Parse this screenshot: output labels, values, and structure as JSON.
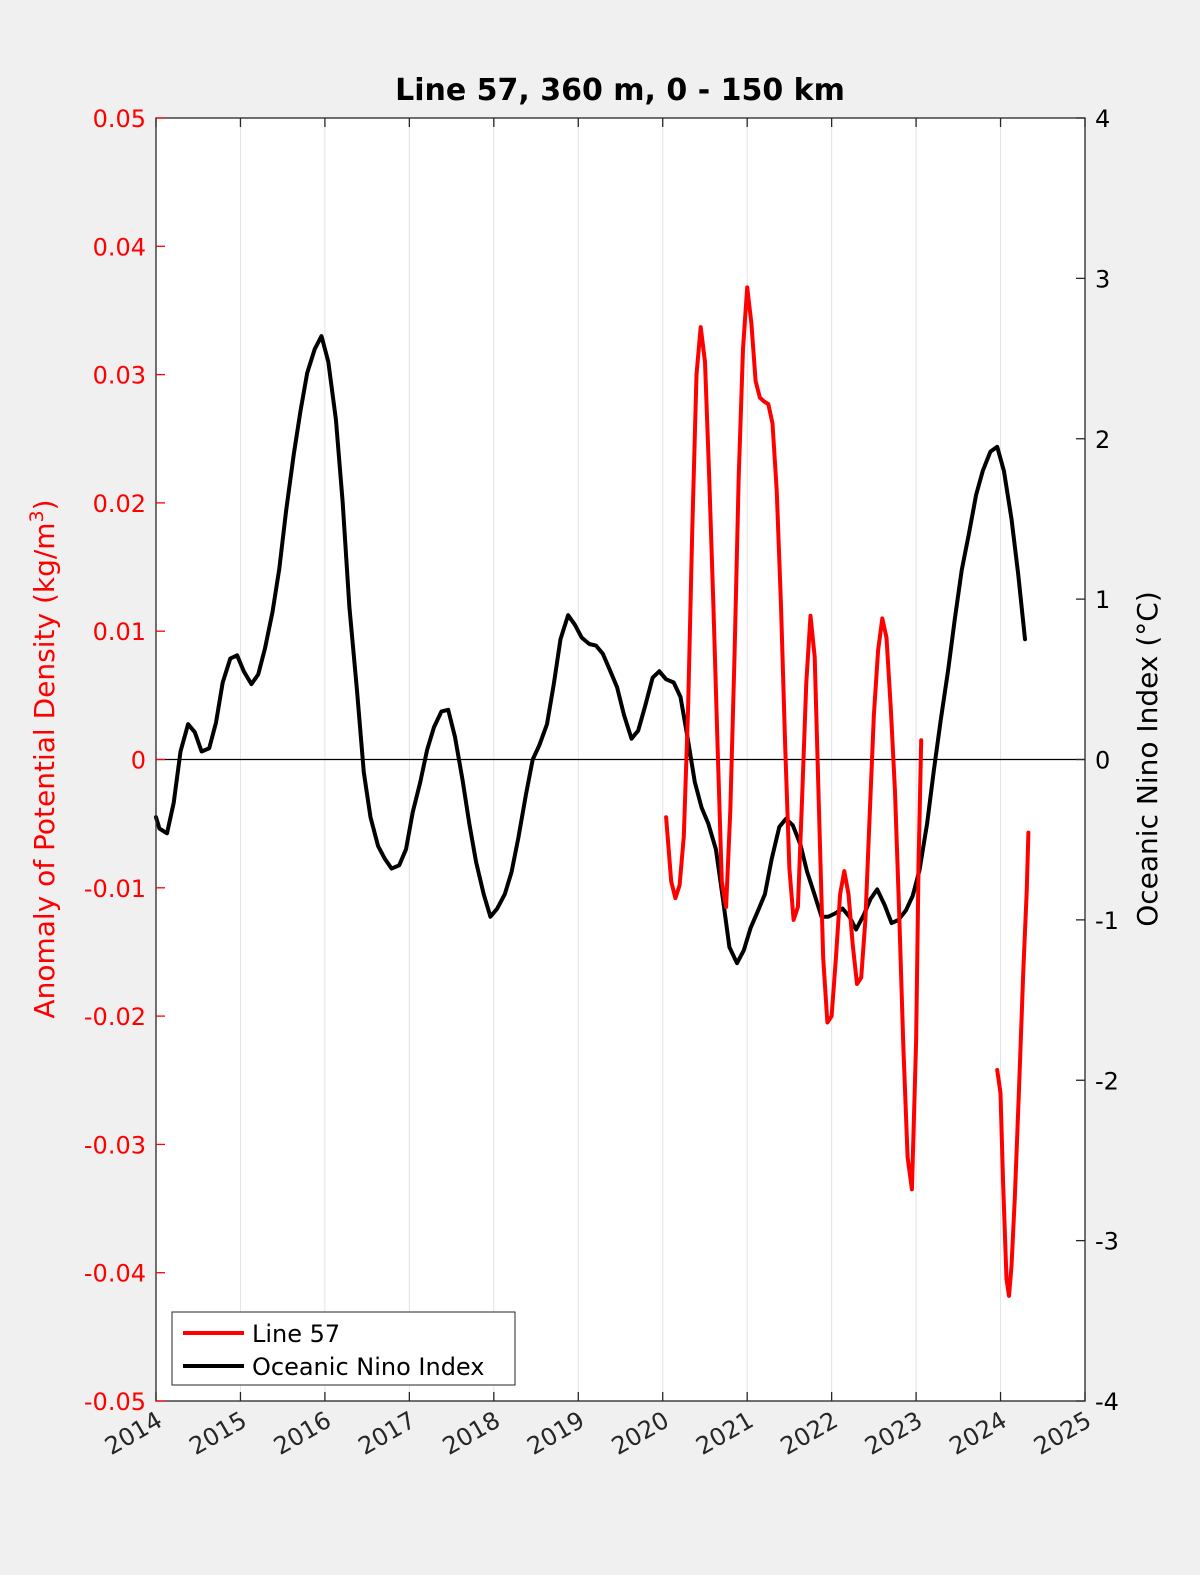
{
  "chart_data": {
    "type": "line",
    "title": "Line 57, 360 m, 0 - 150 km",
    "ylabel_left": "Anomaly of Potential Density (kg/m",
    "ylabel_left_sup": "3",
    "ylabel_left_end": ")",
    "ylabel_right": "Oceanic Nino Index (°C)",
    "xlim": [
      2014,
      2025
    ],
    "ylim_left": [
      -0.05,
      0.05
    ],
    "ylim_right": [
      -4,
      4
    ],
    "x_ticks": [
      "2014",
      "2015",
      "2016",
      "2017",
      "2018",
      "2019",
      "2020",
      "2021",
      "2022",
      "2023",
      "2024",
      "2025"
    ],
    "y_left_ticks": [
      "0.05",
      "0.04",
      "0.03",
      "0.02",
      "0.01",
      "0",
      "-0.01",
      "-0.02",
      "-0.03",
      "-0.04",
      "-0.05"
    ],
    "y_right_ticks": [
      "4",
      "3",
      "2",
      "1",
      "0",
      "-1",
      "-2",
      "-3",
      "-4"
    ],
    "grid": "vertical",
    "zero_line": true,
    "legend_position": "bottom-left",
    "series": [
      {
        "name": "Line 57",
        "axis": "left",
        "color": "#ff0000",
        "segments": [
          [
            [
              2020.04,
              -0.0045
            ],
            [
              2020.1,
              -0.0095
            ],
            [
              2020.15,
              -0.0108
            ],
            [
              2020.2,
              -0.0098
            ],
            [
              2020.25,
              -0.006
            ],
            [
              2020.3,
              0.004
            ],
            [
              2020.35,
              0.018
            ],
            [
              2020.4,
              0.03
            ],
            [
              2020.45,
              0.0337
            ],
            [
              2020.5,
              0.031
            ],
            [
              2020.55,
              0.022
            ],
            [
              2020.6,
              0.012
            ],
            [
              2020.65,
              0.001
            ],
            [
              2020.7,
              -0.0095
            ],
            [
              2020.75,
              -0.0115
            ],
            [
              2020.8,
              -0.004
            ],
            [
              2020.85,
              0.008
            ],
            [
              2020.9,
              0.022
            ],
            [
              2020.95,
              0.032
            ],
            [
              2021.0,
              0.0368
            ],
            [
              2021.05,
              0.034
            ],
            [
              2021.1,
              0.0295
            ],
            [
              2021.15,
              0.0282
            ],
            [
              2021.2,
              0.0279
            ],
            [
              2021.25,
              0.0277
            ],
            [
              2021.3,
              0.0262
            ],
            [
              2021.35,
              0.021
            ],
            [
              2021.4,
              0.012
            ],
            [
              2021.45,
              0.001
            ],
            [
              2021.5,
              -0.0085
            ],
            [
              2021.55,
              -0.0125
            ],
            [
              2021.6,
              -0.0115
            ],
            [
              2021.65,
              -0.003
            ],
            [
              2021.7,
              0.006
            ],
            [
              2021.75,
              0.0112
            ],
            [
              2021.8,
              0.008
            ],
            [
              2021.85,
              -0.004
            ],
            [
              2021.9,
              -0.0155
            ],
            [
              2021.95,
              -0.0205
            ],
            [
              2022.0,
              -0.02
            ],
            [
              2022.05,
              -0.0155
            ],
            [
              2022.1,
              -0.0105
            ],
            [
              2022.15,
              -0.0087
            ],
            [
              2022.2,
              -0.0105
            ],
            [
              2022.25,
              -0.0145
            ],
            [
              2022.3,
              -0.0175
            ],
            [
              2022.35,
              -0.017
            ],
            [
              2022.4,
              -0.0125
            ],
            [
              2022.45,
              -0.0045
            ],
            [
              2022.5,
              0.0035
            ],
            [
              2022.55,
              0.0085
            ],
            [
              2022.6,
              0.011
            ],
            [
              2022.65,
              0.0095
            ],
            [
              2022.7,
              0.004
            ],
            [
              2022.75,
              -0.0025
            ],
            [
              2022.8,
              -0.012
            ],
            [
              2022.85,
              -0.0225
            ],
            [
              2022.9,
              -0.031
            ],
            [
              2022.95,
              -0.0335
            ],
            [
              2023.0,
              -0.022
            ],
            [
              2023.03,
              -0.008
            ],
            [
              2023.06,
              0.0015
            ]
          ],
          [
            [
              2023.96,
              -0.0242
            ],
            [
              2024.0,
              -0.026
            ],
            [
              2024.03,
              -0.033
            ],
            [
              2024.07,
              -0.0405
            ],
            [
              2024.1,
              -0.0418
            ],
            [
              2024.13,
              -0.0395
            ],
            [
              2024.17,
              -0.034
            ],
            [
              2024.22,
              -0.0255
            ],
            [
              2024.27,
              -0.0165
            ],
            [
              2024.31,
              -0.0103
            ],
            [
              2024.33,
              -0.0057
            ]
          ]
        ]
      },
      {
        "name": "Oceanic Nino Index",
        "axis": "right",
        "color": "#000000",
        "points": [
          [
            2014.0,
            -0.36
          ],
          [
            2014.04,
            -0.43
          ],
          [
            2014.13,
            -0.46
          ],
          [
            2014.21,
            -0.27
          ],
          [
            2014.29,
            0.05
          ],
          [
            2014.38,
            0.22
          ],
          [
            2014.46,
            0.17
          ],
          [
            2014.54,
            0.05
          ],
          [
            2014.63,
            0.07
          ],
          [
            2014.71,
            0.23
          ],
          [
            2014.79,
            0.48
          ],
          [
            2014.88,
            0.63
          ],
          [
            2014.96,
            0.65
          ],
          [
            2015.04,
            0.55
          ],
          [
            2015.13,
            0.47
          ],
          [
            2015.21,
            0.53
          ],
          [
            2015.29,
            0.69
          ],
          [
            2015.38,
            0.92
          ],
          [
            2015.46,
            1.19
          ],
          [
            2015.54,
            1.55
          ],
          [
            2015.63,
            1.9
          ],
          [
            2015.71,
            2.17
          ],
          [
            2015.79,
            2.41
          ],
          [
            2015.88,
            2.56
          ],
          [
            2015.96,
            2.64
          ],
          [
            2016.04,
            2.48
          ],
          [
            2016.13,
            2.12
          ],
          [
            2016.21,
            1.61
          ],
          [
            2016.29,
            0.95
          ],
          [
            2016.38,
            0.43
          ],
          [
            2016.46,
            -0.08
          ],
          [
            2016.54,
            -0.36
          ],
          [
            2016.63,
            -0.54
          ],
          [
            2016.71,
            -0.62
          ],
          [
            2016.79,
            -0.68
          ],
          [
            2016.88,
            -0.66
          ],
          [
            2016.96,
            -0.56
          ],
          [
            2017.04,
            -0.33
          ],
          [
            2017.13,
            -0.14
          ],
          [
            2017.21,
            0.06
          ],
          [
            2017.29,
            0.2
          ],
          [
            2017.38,
            0.3
          ],
          [
            2017.46,
            0.31
          ],
          [
            2017.54,
            0.14
          ],
          [
            2017.63,
            -0.13
          ],
          [
            2017.71,
            -0.4
          ],
          [
            2017.79,
            -0.64
          ],
          [
            2017.88,
            -0.84
          ],
          [
            2017.96,
            -0.98
          ],
          [
            2018.04,
            -0.93
          ],
          [
            2018.13,
            -0.84
          ],
          [
            2018.21,
            -0.7
          ],
          [
            2018.29,
            -0.49
          ],
          [
            2018.38,
            -0.22
          ],
          [
            2018.46,
            0.0
          ],
          [
            2018.54,
            0.09
          ],
          [
            2018.63,
            0.22
          ],
          [
            2018.71,
            0.47
          ],
          [
            2018.79,
            0.75
          ],
          [
            2018.88,
            0.9
          ],
          [
            2018.96,
            0.84
          ],
          [
            2019.04,
            0.76
          ],
          [
            2019.13,
            0.72
          ],
          [
            2019.21,
            0.71
          ],
          [
            2019.29,
            0.66
          ],
          [
            2019.38,
            0.55
          ],
          [
            2019.46,
            0.45
          ],
          [
            2019.54,
            0.28
          ],
          [
            2019.63,
            0.13
          ],
          [
            2019.71,
            0.18
          ],
          [
            2019.79,
            0.33
          ],
          [
            2019.88,
            0.51
          ],
          [
            2019.96,
            0.55
          ],
          [
            2020.04,
            0.5
          ],
          [
            2020.13,
            0.48
          ],
          [
            2020.21,
            0.39
          ],
          [
            2020.29,
            0.15
          ],
          [
            2020.38,
            -0.14
          ],
          [
            2020.46,
            -0.3
          ],
          [
            2020.54,
            -0.4
          ],
          [
            2020.63,
            -0.56
          ],
          [
            2020.71,
            -0.86
          ],
          [
            2020.79,
            -1.17
          ],
          [
            2020.88,
            -1.27
          ],
          [
            2020.96,
            -1.19
          ],
          [
            2021.04,
            -1.05
          ],
          [
            2021.13,
            -0.94
          ],
          [
            2021.21,
            -0.84
          ],
          [
            2021.29,
            -0.62
          ],
          [
            2021.38,
            -0.42
          ],
          [
            2021.46,
            -0.37
          ],
          [
            2021.54,
            -0.41
          ],
          [
            2021.63,
            -0.53
          ],
          [
            2021.71,
            -0.7
          ],
          [
            2021.79,
            -0.83
          ],
          [
            2021.88,
            -0.98
          ],
          [
            2021.96,
            -0.98
          ],
          [
            2022.04,
            -0.96
          ],
          [
            2022.13,
            -0.93
          ],
          [
            2022.21,
            -0.98
          ],
          [
            2022.29,
            -1.06
          ],
          [
            2022.38,
            -0.97
          ],
          [
            2022.46,
            -0.87
          ],
          [
            2022.54,
            -0.81
          ],
          [
            2022.63,
            -0.91
          ],
          [
            2022.71,
            -1.02
          ],
          [
            2022.79,
            -1.0
          ],
          [
            2022.88,
            -0.94
          ],
          [
            2022.96,
            -0.85
          ],
          [
            2023.04,
            -0.69
          ],
          [
            2023.13,
            -0.4
          ],
          [
            2023.21,
            -0.07
          ],
          [
            2023.29,
            0.24
          ],
          [
            2023.38,
            0.56
          ],
          [
            2023.46,
            0.88
          ],
          [
            2023.54,
            1.18
          ],
          [
            2023.63,
            1.42
          ],
          [
            2023.71,
            1.65
          ],
          [
            2023.79,
            1.8
          ],
          [
            2023.88,
            1.92
          ],
          [
            2023.96,
            1.95
          ],
          [
            2024.04,
            1.8
          ],
          [
            2024.13,
            1.5
          ],
          [
            2024.21,
            1.15
          ],
          [
            2024.29,
            0.75
          ]
        ]
      }
    ]
  }
}
